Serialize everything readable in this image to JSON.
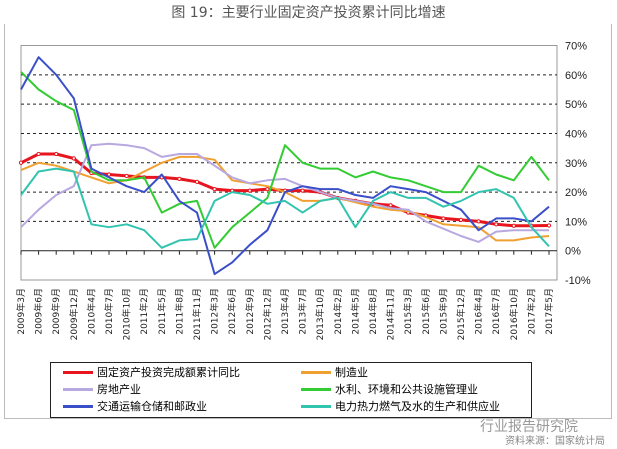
{
  "chart_data": {
    "type": "line",
    "title": "图 19：主要行业固定资产投资累计同比增速",
    "categories": [
      "2009年3月",
      "2009年6月",
      "2009年9月",
      "2009年12月",
      "2010年4月",
      "2010年7月",
      "2010年10月",
      "2011年2月",
      "2011年5月",
      "2011年8月",
      "2011年11月",
      "2012年3月",
      "2012年6月",
      "2012年9月",
      "2012年12月",
      "2013年4月",
      "2013年7月",
      "2013年10月",
      "2014年2月",
      "2014年5月",
      "2014年8月",
      "2014年11月",
      "2015年3月",
      "2015年6月",
      "2015年9月",
      "2015年12月",
      "2016年4月",
      "2016年7月",
      "2016年10月",
      "2017年2月",
      "2017年5月"
    ],
    "y_ticks": [
      "70%",
      "60%",
      "50%",
      "40%",
      "30%",
      "20%",
      "10%",
      "0%",
      "-10%"
    ],
    "ylim": [
      -10,
      70
    ],
    "y_unit": "%",
    "grid": "horizontal dashed",
    "legend_position": "bottom",
    "series": [
      {
        "name": "固定资产投资完成额累计同比",
        "color": "#e8141e",
        "values": [
          30,
          33,
          33,
          31.5,
          26.5,
          26,
          25.5,
          25,
          25,
          24.5,
          23.5,
          21,
          20.5,
          20.5,
          21,
          20.5,
          20.5,
          20,
          18,
          17,
          16,
          15.5,
          13,
          12,
          11,
          10.5,
          10,
          9,
          8.5,
          8.5,
          8.6
        ]
      },
      {
        "name": "制造业",
        "color": "#f0a030",
        "values": [
          27.5,
          30,
          29,
          27,
          25,
          23,
          24,
          27,
          30,
          32,
          32,
          31,
          24,
          23,
          22,
          20,
          17,
          17,
          18,
          16.5,
          15,
          14,
          13.5,
          11.5,
          9,
          8.5,
          8,
          3.5,
          3.5,
          4.5,
          5
        ]
      },
      {
        "name": "房地产业",
        "color": "#b8a8e0",
        "values": [
          8,
          14,
          19,
          22,
          36,
          36.5,
          36,
          35,
          32,
          33,
          33,
          29,
          25,
          23,
          24,
          24.5,
          22,
          20,
          18,
          17,
          16,
          14.5,
          14,
          10,
          7.5,
          5,
          3,
          6.5,
          7,
          7,
          7
        ]
      },
      {
        "name": "水利、环境和公共设施管理业",
        "color": "#33cc33",
        "values": [
          61,
          55,
          51,
          48,
          27,
          24,
          24,
          25,
          13,
          16,
          17,
          1,
          8,
          13,
          18,
          36,
          30,
          28,
          28,
          25,
          27,
          25,
          24,
          22,
          20,
          20,
          29,
          26,
          24,
          32,
          24
        ]
      },
      {
        "name": "交通运输仓储和邮政业",
        "color": "#3a4fc8",
        "values": [
          55,
          66,
          60,
          52,
          28,
          25,
          22,
          20,
          26,
          17,
          13,
          -8,
          -4,
          2,
          7,
          20,
          22,
          21,
          21,
          19,
          18,
          22,
          21,
          20,
          17,
          14,
          7,
          11,
          11,
          10,
          15
        ]
      },
      {
        "name": "电力热力燃气及水的生产和供应业",
        "color": "#33c4b0",
        "values": [
          19,
          27,
          28,
          27,
          9,
          8,
          9,
          7,
          1,
          3.5,
          4,
          17,
          20,
          19,
          16,
          17,
          13,
          17,
          18,
          8,
          17,
          20,
          18,
          18,
          15,
          17,
          20,
          21,
          18,
          8,
          1.5
        ]
      }
    ]
  },
  "watermark": "行业报告研究院",
  "source": "资料来源：国家统计局"
}
